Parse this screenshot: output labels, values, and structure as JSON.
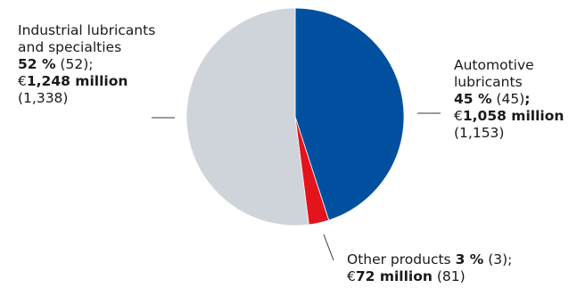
{
  "colors": {
    "automotive": "#00509f",
    "industrial": "#cfd3da",
    "other": "#e3141b",
    "leader": "#3a3a3a"
  },
  "chart_data": {
    "type": "pie",
    "start": "12 o'clock",
    "direction": "clockwise",
    "slices": [
      {
        "key": "automotive",
        "percent": 45,
        "percent_prev": 45,
        "value_million_eur": 1058,
        "value_prev_million_eur": 1153,
        "label_lines": [
          [
            {
              "t": "Automotive",
              "b": false
            }
          ],
          [
            {
              "t": "lubricants",
              "b": false
            }
          ],
          [
            {
              "t": "45 %",
              "b": true
            },
            {
              "t": " (45)",
              "b": false
            },
            {
              "t": ";",
              "b": true
            }
          ],
          [
            {
              "t": "€",
              "b": false
            },
            {
              "t": "1,058 million",
              "b": true
            }
          ],
          [
            {
              "t": "(1,153)",
              "b": false
            }
          ]
        ]
      },
      {
        "key": "other",
        "percent": 3,
        "percent_prev": 3,
        "value_million_eur": 72,
        "value_prev_million_eur": 81,
        "label_lines": [
          [
            {
              "t": "Other products ",
              "b": false
            },
            {
              "t": "3 %",
              "b": true
            },
            {
              "t": " (3);",
              "b": false
            }
          ],
          [
            {
              "t": "€",
              "b": false
            },
            {
              "t": "72 million",
              "b": true
            },
            {
              "t": " (81)",
              "b": false
            }
          ]
        ]
      },
      {
        "key": "industrial",
        "percent": 52,
        "percent_prev": 52,
        "value_million_eur": 1248,
        "value_prev_million_eur": 1338,
        "label_lines": [
          [
            {
              "t": "Industrial lubricants",
              "b": false
            }
          ],
          [
            {
              "t": "and specialties",
              "b": false
            }
          ],
          [
            {
              "t": "52 %",
              "b": true
            },
            {
              "t": " (52);",
              "b": false
            }
          ],
          [
            {
              "t": "€",
              "b": false
            },
            {
              "t": "1,248 million",
              "b": true
            }
          ],
          [
            {
              "t": "(1,338)",
              "b": false
            }
          ]
        ]
      }
    ]
  }
}
